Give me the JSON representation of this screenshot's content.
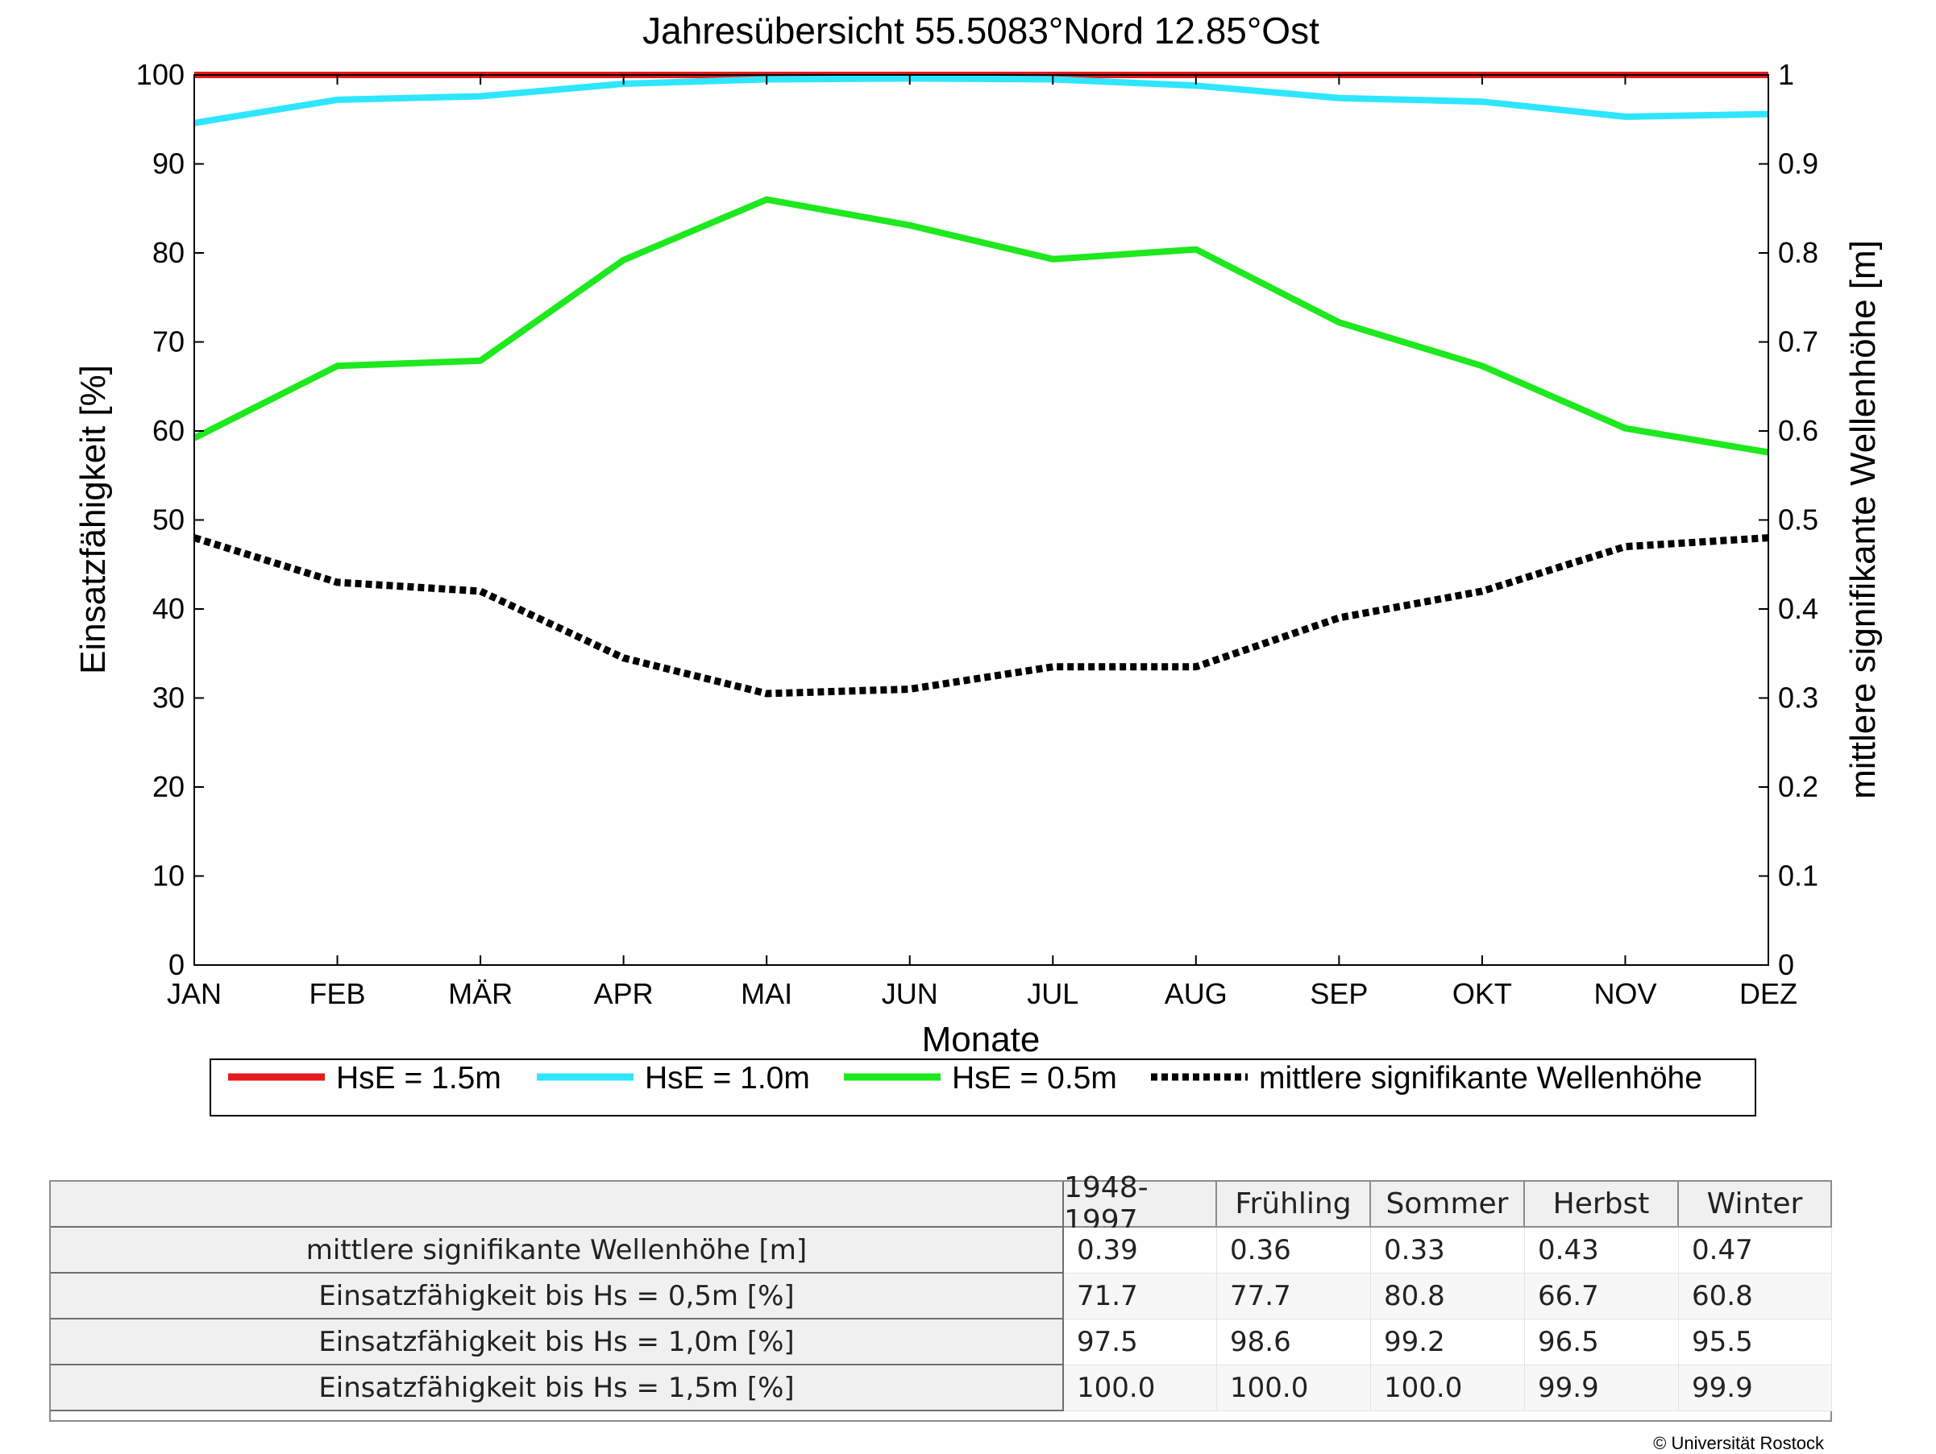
{
  "chart_data": {
    "type": "line",
    "title": "Jahresübersicht  55.5083°Nord  12.85°Ost",
    "xlabel": "Monate",
    "ylabel": "Einsatzfähigkeit [%]",
    "y2label": "mittlere signifikante Wellenhöhe [m]",
    "categories": [
      "JAN",
      "FEB",
      "MÄR",
      "APR",
      "MAI",
      "JUN",
      "JUL",
      "AUG",
      "SEP",
      "OKT",
      "NOV",
      "DEZ"
    ],
    "ylim": [
      0,
      100
    ],
    "y2lim": [
      0,
      1
    ],
    "yticks": [
      "0",
      "10",
      "20",
      "30",
      "40",
      "50",
      "60",
      "70",
      "80",
      "90",
      "100"
    ],
    "y2ticks": [
      "0",
      "0.1",
      "0.2",
      "0.3",
      "0.4",
      "0.5",
      "0.6",
      "0.7",
      "0.8",
      "0.9",
      "1"
    ],
    "grid": false,
    "legend_position": "bottom",
    "series": [
      {
        "name": "HsE = 1.5m",
        "axis": "left",
        "color": "#e41a1c",
        "style": "solid",
        "values": [
          100,
          100,
          100,
          100,
          100,
          100,
          100,
          100,
          100,
          100,
          100,
          100
        ]
      },
      {
        "name": "HsE = 1.0m",
        "axis": "left",
        "color": "#2ee6ff",
        "style": "solid",
        "values": [
          94.6,
          97.2,
          97.6,
          99.0,
          99.5,
          99.6,
          99.5,
          98.8,
          97.4,
          97.0,
          95.3,
          95.6
        ]
      },
      {
        "name": "HsE = 0.5m",
        "axis": "left",
        "color": "#1ee81e",
        "style": "solid",
        "values": [
          59.2,
          67.3,
          67.9,
          79.2,
          86.0,
          83.1,
          79.3,
          80.4,
          72.2,
          67.3,
          60.3,
          57.6
        ]
      },
      {
        "name": "mittlere signifikante Wellenhöhe",
        "axis": "right",
        "color": "#000000",
        "style": "dotted",
        "values": [
          0.48,
          0.43,
          0.42,
          0.345,
          0.305,
          0.31,
          0.335,
          0.335,
          0.39,
          0.42,
          0.47,
          0.48
        ]
      }
    ]
  },
  "table": {
    "header": [
      "1948-1997",
      "Frühling",
      "Sommer",
      "Herbst",
      "Winter"
    ],
    "rows": [
      {
        "label": "mittlere signifikante Wellenhöhe [m]",
        "values": [
          "0.39",
          "0.36",
          "0.33",
          "0.43",
          "0.47"
        ]
      },
      {
        "label": "Einsatzfähigkeit bis Hs = 0,5m [%]",
        "values": [
          "71.7",
          "77.7",
          "80.8",
          "66.7",
          "60.8"
        ]
      },
      {
        "label": "Einsatzfähigkeit bis Hs = 1,0m [%]",
        "values": [
          "97.5",
          "98.6",
          "99.2",
          "96.5",
          "95.5"
        ]
      },
      {
        "label": "Einsatzfähigkeit bis Hs = 1,5m [%]",
        "values": [
          "100.0",
          "100.0",
          "100.0",
          "99.9",
          "99.9"
        ]
      }
    ]
  },
  "copyright": "© Universität Rostock"
}
